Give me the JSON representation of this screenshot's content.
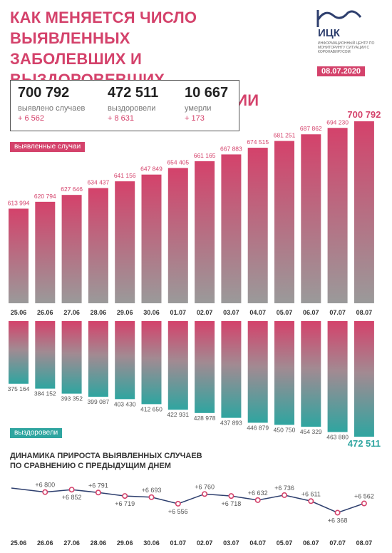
{
  "header": {
    "title_lines": [
      "КАК МЕНЯЕТСЯ ЧИСЛО ВЫЯВЛЕННЫХ",
      "ЗАБОЛЕВШИХ И ВЫЗДОРОВЕВШИХ",
      "ОТ КОРОНАВИРУСА В РОССИИ"
    ],
    "logo_abbr": "ИЦК",
    "logo_sub": "ИНФОРМАЦИОННЫЙ ЦЕНТР ПО МОНИТОРИНГУ СИТУАЦИИ С КОРОНАВИРУСОМ",
    "date": "08.07.2020"
  },
  "stats": [
    {
      "value": "700 792",
      "label": "выявлено случаев",
      "delta": "+ 6 562"
    },
    {
      "value": "472 511",
      "label": "выздоровели",
      "delta": "+ 8 631"
    },
    {
      "value": "10 667",
      "label": "умерли",
      "delta": "+ 173"
    }
  ],
  "labels": {
    "cases": "выявленные случаи",
    "recovered": "выздоровели",
    "dynamics_lines": [
      "ДИНАМИКА ПРИРОСТА ВЫЯВЛЕННЫХ СЛУЧАЕВ",
      "ПО СРАВНЕНИЮ С ПРЕДЫДУЩИМ ДНЕМ"
    ]
  },
  "colors": {
    "accent": "#d4426b",
    "teal": "#2fa5a0",
    "gray": "#9a9a9a",
    "text": "#333333"
  },
  "chart_data": [
    {
      "type": "bar",
      "categories": [
        "25.06",
        "26.06",
        "27.06",
        "28.06",
        "29.06",
        "30.06",
        "01.07",
        "02.07",
        "03.07",
        "04.07",
        "05.07",
        "06.07",
        "07.07",
        "08.07"
      ],
      "series": [
        {
          "name": "выявленные случаи",
          "values": [
            613994,
            620794,
            627646,
            634437,
            641156,
            647849,
            654405,
            661165,
            667883,
            674515,
            681251,
            687862,
            694230,
            700792
          ],
          "labels": [
            "613 994",
            "620 794",
            "627 646",
            "634 437",
            "641 156",
            "647 849",
            "654 405",
            "661 165",
            "667 883",
            "674 515",
            "681 251",
            "687 862",
            "694 230",
            "700 792"
          ]
        }
      ]
    },
    {
      "type": "bar",
      "categories": [
        "25.06",
        "26.06",
        "27.06",
        "28.06",
        "29.06",
        "30.06",
        "01.07",
        "02.07",
        "03.07",
        "04.07",
        "05.07",
        "06.07",
        "07.07",
        "08.07"
      ],
      "series": [
        {
          "name": "выздоровели",
          "values": [
            375164,
            384152,
            393352,
            399087,
            403430,
            412650,
            422931,
            428978,
            437893,
            446879,
            450750,
            454329,
            463880,
            472511
          ],
          "labels": [
            "375 164",
            "384 152",
            "393 352",
            "399 087",
            "403 430",
            "412 650",
            "422 931",
            "428 978",
            "437 893",
            "446 879",
            "450 750",
            "454 329",
            "463 880",
            "472 511"
          ]
        }
      ]
    },
    {
      "type": "line",
      "categories": [
        "25.06",
        "26.06",
        "27.06",
        "28.06",
        "29.06",
        "30.06",
        "01.07",
        "02.07",
        "03.07",
        "04.07",
        "05.07",
        "06.07",
        "07.07",
        "08.07"
      ],
      "series": [
        {
          "name": "",
          "values": [
            null,
            6800,
            6852,
            6791,
            6719,
            6693,
            6556,
            6760,
            6718,
            6632,
            6736,
            6611,
            6368,
            6562
          ],
          "labels": [
            "",
            "+6 800",
            "+6 852",
            "+6 791",
            "+6 719",
            "+6 693",
            "+6 556",
            "+6 760",
            "+6 718",
            "+6 632",
            "+6 736",
            "+6 611",
            "+6 368",
            "+6 562"
          ]
        }
      ]
    }
  ]
}
